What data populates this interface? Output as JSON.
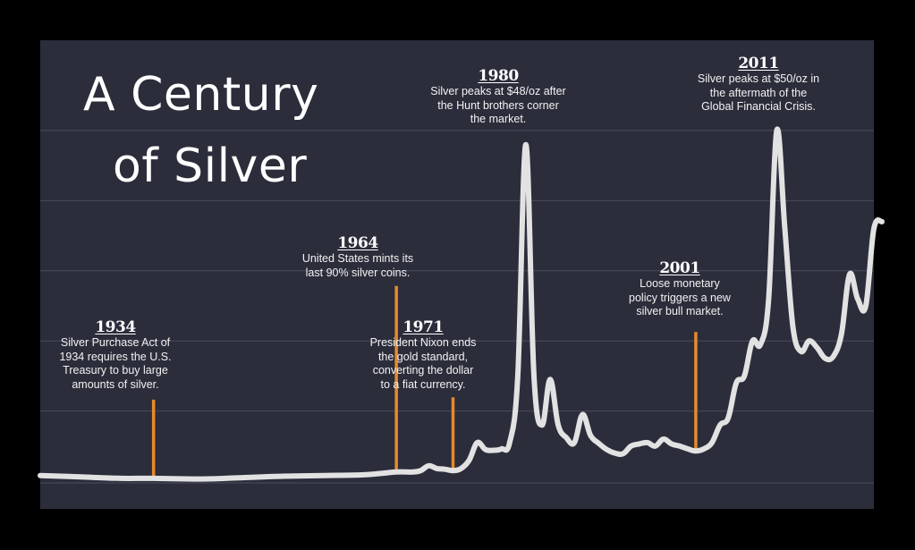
{
  "title_line1": "A Century",
  "title_line2": "of Silver",
  "colors": {
    "page_bg": "#000000",
    "panel_bg": "#2b2d3b",
    "grid": "#4a4d5e",
    "line": "#e2e2e2",
    "marker": "#e8892a",
    "text": "#ffffff"
  },
  "chart_data": {
    "type": "line",
    "title": "A Century of Silver",
    "xlabel": "",
    "ylabel": "",
    "xlim": [
      1920,
      2023
    ],
    "ylim": [
      0,
      50
    ],
    "grid": "horizontal",
    "series": [
      {
        "values": [
          [
            1920,
            0.8
          ],
          [
            1925,
            0.6
          ],
          [
            1930,
            0.4
          ],
          [
            1934,
            0.4
          ],
          [
            1940,
            0.3
          ],
          [
            1945,
            0.5
          ],
          [
            1950,
            0.7
          ],
          [
            1955,
            0.8
          ],
          [
            1960,
            0.9
          ],
          [
            1964,
            1.3
          ],
          [
            1966,
            1.3
          ],
          [
            1967,
            1.5
          ],
          [
            1968,
            2.2
          ],
          [
            1969,
            1.8
          ],
          [
            1970,
            1.7
          ],
          [
            1971,
            1.5
          ],
          [
            1972,
            1.8
          ],
          [
            1973,
            3.0
          ],
          [
            1974,
            5.5
          ],
          [
            1975,
            4.5
          ],
          [
            1976,
            4.4
          ],
          [
            1977,
            4.6
          ],
          [
            1978,
            5.5
          ],
          [
            1979,
            15.0
          ],
          [
            1980,
            48.0
          ],
          [
            1981,
            15.0
          ],
          [
            1982,
            8.0
          ],
          [
            1983,
            14.5
          ],
          [
            1984,
            8.0
          ],
          [
            1985,
            6.2
          ],
          [
            1986,
            5.5
          ],
          [
            1987,
            9.5
          ],
          [
            1988,
            6.5
          ],
          [
            1989,
            5.4
          ],
          [
            1990,
            4.5
          ],
          [
            1991,
            4.0
          ],
          [
            1992,
            3.9
          ],
          [
            1993,
            5.0
          ],
          [
            1994,
            5.3
          ],
          [
            1995,
            5.5
          ],
          [
            1996,
            5.0
          ],
          [
            1997,
            6.0
          ],
          [
            1998,
            5.3
          ],
          [
            1999,
            5.0
          ],
          [
            2000,
            4.6
          ],
          [
            2001,
            4.3
          ],
          [
            2002,
            4.6
          ],
          [
            2003,
            5.5
          ],
          [
            2004,
            8.0
          ],
          [
            2005,
            9.0
          ],
          [
            2006,
            14.0
          ],
          [
            2007,
            15.0
          ],
          [
            2008,
            20.0
          ],
          [
            2009,
            19.5
          ],
          [
            2010,
            26.0
          ],
          [
            2011,
            50.0
          ],
          [
            2012,
            36.0
          ],
          [
            2013,
            22.0
          ],
          [
            2014,
            18.5
          ],
          [
            2015,
            20.0
          ],
          [
            2016,
            19.0
          ],
          [
            2017,
            17.5
          ],
          [
            2018,
            17.8
          ],
          [
            2019,
            21.0
          ],
          [
            2020,
            29.5
          ],
          [
            2021,
            26.0
          ],
          [
            2022,
            25.0
          ],
          [
            2023,
            36.0
          ],
          [
            2024,
            37.0
          ]
        ]
      }
    ],
    "annotations": [
      {
        "year": 1934,
        "value": 0.4,
        "label": "1934",
        "text": [
          "Silver Purchase Act of",
          "1934 requires the U.S.",
          "Treasury to buy large",
          "amounts of silver."
        ],
        "marker": true
      },
      {
        "year": 1964,
        "value": 1.3,
        "label": "1964",
        "text": [
          "United States mints its",
          "last 90% silver coins."
        ],
        "marker": true
      },
      {
        "year": 1971,
        "value": 1.5,
        "label": "1971",
        "text": [
          "President Nixon ends",
          "the gold standard,",
          "converting the dollar",
          "to a fiat currency."
        ],
        "marker": true
      },
      {
        "year": 1980,
        "value": 48.0,
        "label": "1980",
        "text": [
          "Silver peaks at $48/oz after",
          "the Hunt brothers corner",
          "the market."
        ],
        "marker": false
      },
      {
        "year": 2001,
        "value": 4.3,
        "label": "2001",
        "text": [
          "Loose monetary",
          "policy triggers a new",
          "silver bull market."
        ],
        "marker": true
      },
      {
        "year": 2011,
        "value": 50.0,
        "label": "2011",
        "text": [
          "Silver peaks at $50/oz in",
          "the aftermath of the",
          "Global Financial Crisis."
        ],
        "marker": false
      }
    ]
  }
}
